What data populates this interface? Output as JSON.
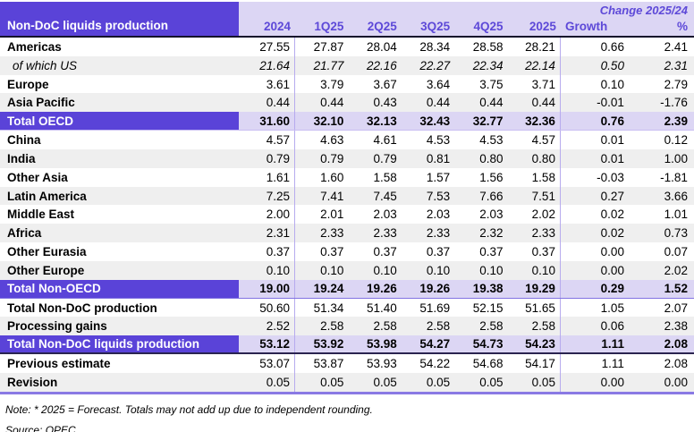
{
  "header": {
    "title": "Non-DoC liquids production",
    "change_label": "Change 2025/24",
    "columns": [
      "2024",
      "1Q25",
      "2Q25",
      "3Q25",
      "4Q25",
      "2025",
      "Growth",
      "%"
    ]
  },
  "table": {
    "rows": [
      {
        "label": "Americas",
        "type": "normal",
        "stripe": false,
        "values": [
          "27.55",
          "27.87",
          "28.04",
          "28.34",
          "28.58",
          "28.21",
          "0.66",
          "2.41"
        ]
      },
      {
        "label": "of which US",
        "type": "italic",
        "stripe": true,
        "values": [
          "21.64",
          "21.77",
          "22.16",
          "22.27",
          "22.34",
          "22.14",
          "0.50",
          "2.31"
        ]
      },
      {
        "label": "Europe",
        "type": "normal",
        "stripe": false,
        "values": [
          "3.61",
          "3.79",
          "3.67",
          "3.64",
          "3.75",
          "3.71",
          "0.10",
          "2.79"
        ]
      },
      {
        "label": "Asia Pacific",
        "type": "normal",
        "stripe": true,
        "values": [
          "0.44",
          "0.44",
          "0.43",
          "0.44",
          "0.44",
          "0.44",
          "-0.01",
          "-1.76"
        ]
      },
      {
        "label": "Total OECD",
        "type": "total",
        "stripe": false,
        "border": "light",
        "values": [
          "31.60",
          "32.10",
          "32.13",
          "32.43",
          "32.77",
          "32.36",
          "0.76",
          "2.39"
        ]
      },
      {
        "label": "China",
        "type": "normal",
        "stripe": false,
        "values": [
          "4.57",
          "4.63",
          "4.61",
          "4.53",
          "4.53",
          "4.57",
          "0.01",
          "0.12"
        ]
      },
      {
        "label": "India",
        "type": "normal",
        "stripe": true,
        "values": [
          "0.79",
          "0.79",
          "0.79",
          "0.81",
          "0.80",
          "0.80",
          "0.01",
          "1.00"
        ]
      },
      {
        "label": "Other Asia",
        "type": "normal",
        "stripe": false,
        "values": [
          "1.61",
          "1.60",
          "1.58",
          "1.57",
          "1.56",
          "1.58",
          "-0.03",
          "-1.81"
        ]
      },
      {
        "label": "Latin America",
        "type": "normal",
        "stripe": true,
        "values": [
          "7.25",
          "7.41",
          "7.45",
          "7.53",
          "7.66",
          "7.51",
          "0.27",
          "3.66"
        ]
      },
      {
        "label": "Middle East",
        "type": "normal",
        "stripe": false,
        "values": [
          "2.00",
          "2.01",
          "2.03",
          "2.03",
          "2.03",
          "2.02",
          "0.02",
          "1.01"
        ]
      },
      {
        "label": "Africa",
        "type": "normal",
        "stripe": true,
        "values": [
          "2.31",
          "2.33",
          "2.33",
          "2.33",
          "2.32",
          "2.33",
          "0.02",
          "0.73"
        ]
      },
      {
        "label": "Other Eurasia",
        "type": "normal",
        "stripe": false,
        "values": [
          "0.37",
          "0.37",
          "0.37",
          "0.37",
          "0.37",
          "0.37",
          "0.00",
          "0.07"
        ]
      },
      {
        "label": "Other Europe",
        "type": "normal",
        "stripe": true,
        "values": [
          "0.10",
          "0.10",
          "0.10",
          "0.10",
          "0.10",
          "0.10",
          "0.00",
          "2.02"
        ]
      },
      {
        "label": "Total Non-OECD",
        "type": "total",
        "stripe": false,
        "border": "medium",
        "values": [
          "19.00",
          "19.24",
          "19.26",
          "19.26",
          "19.38",
          "19.29",
          "0.29",
          "1.52"
        ]
      },
      {
        "label": "Total Non-DoC production",
        "type": "normal",
        "stripe": false,
        "values": [
          "50.60",
          "51.34",
          "51.40",
          "51.69",
          "52.15",
          "51.65",
          "1.05",
          "2.07"
        ]
      },
      {
        "label": "Processing gains",
        "type": "normal",
        "stripe": true,
        "values": [
          "2.52",
          "2.58",
          "2.58",
          "2.58",
          "2.58",
          "2.58",
          "0.06",
          "2.38"
        ]
      },
      {
        "label": "Total Non-DoC liquids production",
        "type": "total",
        "stripe": false,
        "border": "dark",
        "values": [
          "53.12",
          "53.92",
          "53.98",
          "54.27",
          "54.73",
          "54.23",
          "1.11",
          "2.08"
        ]
      },
      {
        "label": "Previous estimate",
        "type": "normal",
        "stripe": false,
        "values": [
          "53.07",
          "53.87",
          "53.93",
          "54.22",
          "54.68",
          "54.17",
          "1.11",
          "2.08"
        ]
      },
      {
        "label": "Revision",
        "type": "normal",
        "stripe": true,
        "values": [
          "0.05",
          "0.05",
          "0.05",
          "0.05",
          "0.05",
          "0.05",
          "0.00",
          "0.00"
        ]
      }
    ]
  },
  "footer": {
    "note": "Note: * 2025 = Forecast. Totals may not add up due to independent rounding.",
    "source": "Source: OPEC."
  },
  "colors": {
    "header_purple": "#5a43d8",
    "lavender": "#dcd6f4",
    "stripe_gray": "#efefef",
    "separator_purple": "#b7abee",
    "header_text_purple": "#5d49d8",
    "bottom_rule_purple": "#8a7ae4"
  }
}
